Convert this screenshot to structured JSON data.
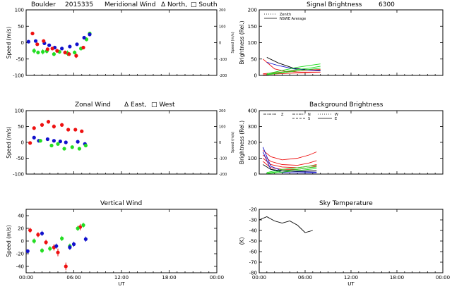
{
  "header": {
    "site": "Boulder",
    "date": "2015335",
    "wavelength": "6300"
  },
  "colors": {
    "red": "#ee1111",
    "green": "#22dd22",
    "blue": "#1111cc",
    "black": "#000000"
  },
  "x_axis": {
    "ticks": [
      "00:00",
      "06:00",
      "12:00",
      "18:00",
      "00:00"
    ],
    "label": "UT"
  },
  "chart_data": [
    {
      "id": "meridional",
      "type": "scatter",
      "title": "Meridional Wind",
      "legend_text": {
        "a": "Δ North,",
        "b": "□ South"
      },
      "xlim": [
        0,
        24
      ],
      "ylim": [
        -100,
        100
      ],
      "ylabel": "Speed (m/s)",
      "yticks": [
        "-100",
        "-50",
        "0",
        "50",
        "100"
      ],
      "right_ylabel": "Speed (m/s)",
      "right_yticks": [
        "-200",
        "-100",
        "0",
        "100",
        "200"
      ],
      "series": [
        {
          "name": "North",
          "color": "#22dd22",
          "points": [
            [
              1.0,
              -25,
              8
            ],
            [
              1.5,
              -30,
              6
            ],
            [
              2.1,
              -28,
              8
            ],
            [
              2.6,
              -26,
              7
            ],
            [
              3.5,
              -35,
              6
            ],
            [
              4.2,
              -28,
              6
            ],
            [
              5.2,
              -32,
              8
            ],
            [
              6.1,
              -30,
              6
            ],
            [
              6.9,
              -18,
              5
            ],
            [
              7.6,
              10,
              6
            ],
            [
              8.0,
              28,
              5
            ]
          ]
        },
        {
          "name": "South",
          "color": "#1111cc",
          "points": [
            [
              0.3,
              3,
              3
            ],
            [
              1.2,
              5,
              3
            ],
            [
              2.3,
              -2,
              4
            ],
            [
              2.9,
              -8,
              4
            ],
            [
              3.6,
              -15,
              4
            ],
            [
              4.5,
              -18,
              4
            ],
            [
              5.5,
              -12,
              4
            ],
            [
              6.4,
              -5,
              5
            ],
            [
              7.3,
              15,
              5
            ],
            [
              8.0,
              25,
              4
            ]
          ]
        },
        {
          "name": "Zenith",
          "color": "#ee1111",
          "points": [
            [
              0.8,
              28,
              3
            ],
            [
              1.4,
              -5,
              4
            ],
            [
              2.2,
              5,
              5
            ],
            [
              2.7,
              -20,
              5
            ],
            [
              3.3,
              -18,
              5
            ],
            [
              3.9,
              -25,
              6
            ],
            [
              4.9,
              -30,
              6
            ],
            [
              5.4,
              -35,
              6
            ],
            [
              6.3,
              -40,
              7
            ],
            [
              7.2,
              -15,
              5
            ]
          ]
        }
      ]
    },
    {
      "id": "signal",
      "type": "line",
      "title": "Signal Brightness",
      "legend_text": {
        "a": "Zenith",
        "b": "NSWE Average"
      },
      "xlim": [
        0,
        24
      ],
      "ylim": [
        0,
        200
      ],
      "ylabel": "Brightness (Rel.)",
      "yticks": [
        "0",
        "50",
        "100",
        "150",
        "200"
      ],
      "series": [
        {
          "color": "#000000",
          "points": [
            [
              1.0,
              55
            ],
            [
              2.5,
              38
            ],
            [
              4.5,
              22
            ],
            [
              6.0,
              18
            ],
            [
              8.0,
              15
            ]
          ]
        },
        {
          "color": "#ee1111",
          "points": [
            [
              0.5,
              50
            ],
            [
              2.0,
              20
            ],
            [
              3.5,
              12
            ],
            [
              5.5,
              10
            ],
            [
              8.0,
              10
            ]
          ]
        },
        {
          "color": "#ee1111",
          "points": [
            [
              0.5,
              2
            ],
            [
              2.0,
              4
            ],
            [
              3.5,
              6
            ],
            [
              5.5,
              8
            ],
            [
              8.0,
              10
            ]
          ]
        },
        {
          "color": "#ee1111",
          "points": [
            [
              0.5,
              5
            ],
            [
              2.0,
              8
            ],
            [
              3.5,
              12
            ],
            [
              5.5,
              15
            ],
            [
              8.0,
              18
            ]
          ]
        },
        {
          "color": "#1111cc",
          "points": [
            [
              1.0,
              40
            ],
            [
              2.5,
              30
            ],
            [
              4.5,
              20
            ],
            [
              6.5,
              16
            ],
            [
              8.0,
              14
            ]
          ]
        },
        {
          "color": "#22dd22",
          "points": [
            [
              1.0,
              5
            ],
            [
              3.0,
              15
            ],
            [
              5.0,
              25
            ],
            [
              6.5,
              30
            ],
            [
              8.0,
              35
            ]
          ]
        },
        {
          "color": "#22dd22",
          "points": [
            [
              1.0,
              3
            ],
            [
              3.0,
              10
            ],
            [
              5.0,
              18
            ],
            [
              6.5,
              22
            ],
            [
              8.0,
              28
            ]
          ]
        },
        {
          "color": "#22dd22",
          "points": [
            [
              1.0,
              2
            ],
            [
              3.0,
              8
            ],
            [
              5.0,
              14
            ],
            [
              6.5,
              18
            ],
            [
              8.0,
              22
            ]
          ]
        }
      ]
    },
    {
      "id": "zonal",
      "type": "scatter",
      "title": "Zonal Wind",
      "legend_text": {
        "a": "Δ East,",
        "b": "□ West"
      },
      "xlim": [
        0,
        24
      ],
      "ylim": [
        -100,
        100
      ],
      "ylabel": "Speed (m/s)",
      "yticks": [
        "-100",
        "-50",
        "0",
        "50",
        "100"
      ],
      "right_ylabel": "Speed (m/s)",
      "right_yticks": [
        "-200",
        "-100",
        "0",
        "100",
        "200"
      ],
      "series": [
        {
          "name": "East",
          "color": "#ee1111",
          "points": [
            [
              0.5,
              -2,
              3
            ],
            [
              1.0,
              45,
              4
            ],
            [
              2.0,
              55,
              6
            ],
            [
              2.8,
              65,
              6
            ],
            [
              3.5,
              50,
              7
            ],
            [
              4.5,
              55,
              6
            ],
            [
              5.3,
              40,
              5
            ],
            [
              6.2,
              40,
              5
            ],
            [
              7.0,
              35,
              5
            ]
          ]
        },
        {
          "name": "West",
          "color": "#1111cc",
          "points": [
            [
              1.0,
              15,
              4
            ],
            [
              1.6,
              5,
              4
            ],
            [
              2.7,
              10,
              4
            ],
            [
              3.5,
              5,
              4
            ],
            [
              4.3,
              3,
              4
            ],
            [
              5.0,
              0,
              4
            ],
            [
              6.5,
              2,
              4
            ],
            [
              7.4,
              -5,
              4
            ]
          ]
        },
        {
          "name": "Vertical",
          "color": "#22dd22",
          "points": [
            [
              1.8,
              5,
              4
            ],
            [
              3.2,
              -10,
              5
            ],
            [
              4.0,
              -5,
              5
            ],
            [
              4.8,
              -20,
              5
            ],
            [
              5.8,
              -15,
              5
            ],
            [
              6.7,
              -20,
              5
            ],
            [
              7.5,
              -10,
              5
            ]
          ]
        }
      ]
    },
    {
      "id": "background",
      "type": "line",
      "title": "Background Brightness",
      "legend_text": {
        "z": "Z",
        "n": "N",
        "s": "S",
        "w": "W",
        "e": "E"
      },
      "xlim": [
        0,
        24
      ],
      "ylim": [
        0,
        400
      ],
      "ylabel": "Brightness (Rel.)",
      "yticks": [
        "0",
        "100",
        "200",
        "300",
        "400"
      ],
      "series": [
        {
          "color": "#ee1111",
          "points": [
            [
              0.5,
              150
            ],
            [
              1.5,
              110
            ],
            [
              3.0,
              90
            ],
            [
              5.0,
              100
            ],
            [
              6.5,
              120
            ],
            [
              7.5,
              140
            ]
          ]
        },
        {
          "color": "#ee1111",
          "points": [
            [
              0.5,
              120
            ],
            [
              1.5,
              80
            ],
            [
              3.0,
              60
            ],
            [
              5.0,
              55
            ],
            [
              6.5,
              70
            ],
            [
              7.5,
              85
            ]
          ]
        },
        {
          "color": "#ee1111",
          "points": [
            [
              0.5,
              100
            ],
            [
              1.5,
              60
            ],
            [
              3.0,
              45
            ],
            [
              5.0,
              40
            ],
            [
              6.5,
              50
            ],
            [
              7.5,
              60
            ]
          ]
        },
        {
          "color": "#ee1111",
          "points": [
            [
              0.5,
              80
            ],
            [
              1.5,
              40
            ],
            [
              3.0,
              30
            ],
            [
              5.0,
              30
            ],
            [
              6.5,
              40
            ],
            [
              7.5,
              50
            ]
          ]
        },
        {
          "color": "#1111cc",
          "points": [
            [
              0.5,
              170
            ],
            [
              1.5,
              50
            ],
            [
              3.0,
              20
            ],
            [
              5.0,
              15
            ],
            [
              7.5,
              12
            ]
          ]
        },
        {
          "color": "#1111cc",
          "points": [
            [
              0.5,
              140
            ],
            [
              1.5,
              30
            ],
            [
              3.0,
              10
            ],
            [
              5.0,
              8
            ],
            [
              7.5,
              8
            ]
          ]
        },
        {
          "color": "#22dd22",
          "points": [
            [
              1.0,
              10
            ],
            [
              3.0,
              30
            ],
            [
              5.0,
              40
            ],
            [
              6.5,
              50
            ],
            [
              7.5,
              55
            ]
          ]
        },
        {
          "color": "#22dd22",
          "points": [
            [
              1.0,
              5
            ],
            [
              3.0,
              20
            ],
            [
              5.0,
              30
            ],
            [
              6.5,
              40
            ],
            [
              7.5,
              45
            ]
          ]
        },
        {
          "color": "#22dd22",
          "points": [
            [
              1.0,
              3
            ],
            [
              3.0,
              12
            ],
            [
              5.0,
              22
            ],
            [
              6.5,
              30
            ],
            [
              7.5,
              35
            ]
          ]
        },
        {
          "color": "#000000",
          "points": [
            [
              0.5,
              60
            ],
            [
              1.5,
              30
            ],
            [
              3.0,
              20
            ],
            [
              5.0,
              18
            ],
            [
              7.5,
              20
            ]
          ]
        }
      ]
    },
    {
      "id": "vertical",
      "type": "scatter",
      "title": "Vertical Wind",
      "xlim": [
        0,
        24
      ],
      "ylim": [
        -50,
        50
      ],
      "ylabel": "Speed (m/s)",
      "yticks": [
        "-40",
        "-20",
        "0",
        "20",
        "40"
      ],
      "series": [
        {
          "name": "Red",
          "color": "#ee1111",
          "points": [
            [
              0.5,
              17,
              4
            ],
            [
              1.5,
              10,
              4
            ],
            [
              2.5,
              -2,
              4
            ],
            [
              3.5,
              -10,
              5
            ],
            [
              4.0,
              -18,
              6
            ],
            [
              5.0,
              -40,
              6
            ],
            [
              6.8,
              22,
              5
            ]
          ]
        },
        {
          "name": "Green",
          "color": "#22dd22",
          "points": [
            [
              1.0,
              0,
              4
            ],
            [
              2.0,
              -15,
              4
            ],
            [
              3.0,
              -12,
              4
            ],
            [
              4.5,
              4,
              4
            ],
            [
              5.5,
              -8,
              4
            ],
            [
              6.5,
              20,
              4
            ],
            [
              7.2,
              25,
              4
            ]
          ]
        },
        {
          "name": "Blue",
          "color": "#1111cc",
          "points": [
            [
              0.2,
              -16,
              3
            ],
            [
              2.0,
              12,
              4
            ],
            [
              3.8,
              -8,
              4
            ],
            [
              5.5,
              -10,
              4
            ],
            [
              6.0,
              -5,
              4
            ],
            [
              7.5,
              3,
              4
            ]
          ]
        }
      ]
    },
    {
      "id": "skytemp",
      "type": "line",
      "title": "Sky Temperature",
      "xlim": [
        0,
        24
      ],
      "ylim": [
        -80,
        -20
      ],
      "ylabel": "(K)",
      "yticks": [
        "-80",
        "-70",
        "-60",
        "-50",
        "-40",
        "-30",
        "-20"
      ],
      "series": [
        {
          "color": "#000000",
          "points": [
            [
              0.0,
              -30
            ],
            [
              1.0,
              -27
            ],
            [
              2.0,
              -31
            ],
            [
              3.0,
              -33
            ],
            [
              4.0,
              -31
            ],
            [
              5.0,
              -35
            ],
            [
              6.0,
              -42
            ],
            [
              7.0,
              -40
            ]
          ]
        }
      ]
    }
  ]
}
